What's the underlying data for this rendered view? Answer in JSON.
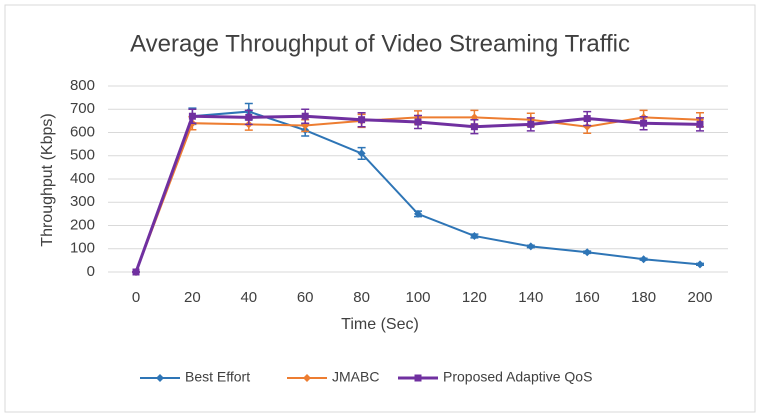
{
  "chart_data": {
    "type": "line",
    "title": "Average Throughput of Video Streaming Traffic",
    "x_label": "Time (Sec)",
    "y_label": "Throughput (Kbps)",
    "x": [
      0,
      20,
      40,
      60,
      80,
      100,
      120,
      140,
      160,
      180,
      200
    ],
    "xlim": [
      0,
      200
    ],
    "xticks": [
      0,
      20,
      40,
      60,
      80,
      100,
      120,
      140,
      160,
      180,
      200
    ],
    "ylim": [
      0,
      800
    ],
    "yticks": [
      0,
      100,
      200,
      300,
      400,
      500,
      600,
      700,
      800
    ],
    "grid": true,
    "legend": "bottom",
    "series": [
      {
        "name": "Best Effort",
        "color": "#2e75b6",
        "marker": "diamond",
        "values": [
          0,
          670,
          690,
          610,
          510,
          250,
          155,
          110,
          85,
          55,
          33
        ],
        "errors": [
          0,
          35,
          35,
          25,
          25,
          12,
          8,
          5,
          5,
          4,
          4
        ]
      },
      {
        "name": "JMABC",
        "color": "#ed7d31",
        "marker": "diamond",
        "values": [
          0,
          640,
          635,
          630,
          650,
          665,
          665,
          655,
          625,
          665,
          655
        ],
        "errors": [
          0,
          28,
          25,
          25,
          28,
          28,
          30,
          28,
          28,
          30,
          30
        ]
      },
      {
        "name": "Proposed Adaptive QoS",
        "color": "#7030a0",
        "marker": "square",
        "values": [
          0,
          670,
          665,
          670,
          655,
          645,
          625,
          635,
          660,
          640,
          635
        ],
        "errors": [
          0,
          30,
          30,
          30,
          30,
          28,
          30,
          28,
          30,
          28,
          28
        ]
      }
    ]
  }
}
